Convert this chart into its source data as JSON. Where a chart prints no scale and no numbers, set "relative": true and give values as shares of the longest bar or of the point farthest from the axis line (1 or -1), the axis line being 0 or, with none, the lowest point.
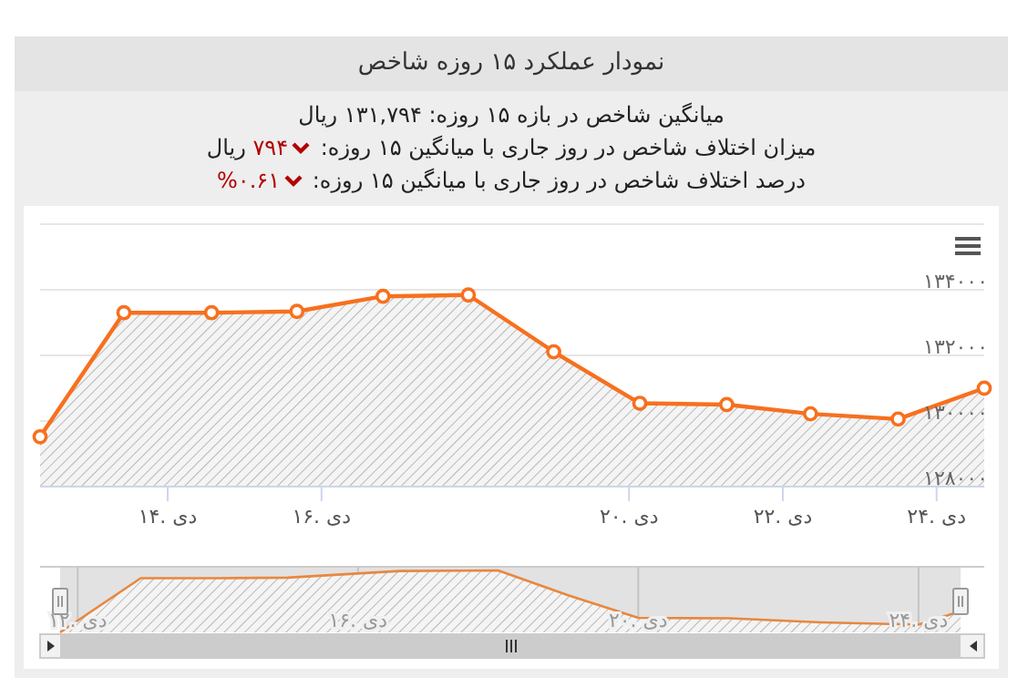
{
  "chart_data": [
    {
      "type": "area",
      "title": "نمودار عملکرد ۱۵ روزه شاخص",
      "annotations": [
        "میانگین شاخص در بازه ۱۵ روزه: ۱۳۱,۷۹۴ ریال",
        "میزان اختلاف شاخص در روز جاری با میانگین ۱۵ روزه: ۷۹۴ ریال",
        "درصد اختلاف شاخص در روز جاری با میانگین ۱۵ روزه: ۰.۶۱%"
      ],
      "x": [
        12.34,
        13.43,
        14.57,
        15.68,
        16.8,
        17.91,
        19.02,
        20.14,
        21.27,
        22.36,
        23.5,
        24.62
      ],
      "series": [
        {
          "color": "#f7701e",
          "values": [
            129520,
            133300,
            133300,
            133340,
            133800,
            133840,
            132110,
            130540,
            130500,
            130220,
            130060,
            131000
          ]
        }
      ],
      "xlim": [
        12.34,
        24.62
      ],
      "xticks": [
        {
          "value": 14,
          "label": "۱۴. دی"
        },
        {
          "value": 16,
          "label": "۱۶. دی"
        },
        {
          "value": 20,
          "label": "۲۰. دی"
        },
        {
          "value": 22,
          "label": "۲۲. دی"
        },
        {
          "value": 24,
          "label": "۲۴. دی"
        }
      ],
      "ylim": [
        128000,
        136000
      ],
      "yticks": [
        {
          "value": 128000,
          "label": "۱۲۸۰۰۰"
        },
        {
          "value": 130000,
          "label": "۱۳۰۰۰۰"
        },
        {
          "value": 132000,
          "label": "۱۳۲۰۰۰"
        },
        {
          "value": 134000,
          "label": "۱۳۴۰۰۰"
        },
        {
          "value": 136000,
          "label": null
        }
      ],
      "grid": "y",
      "marker": "circle"
    },
    {
      "type": "area",
      "relative": true,
      "x": [
        11.75,
        12.9,
        14.0,
        15.0,
        16.6,
        18.0,
        19.0,
        20.0,
        21.3,
        22.6,
        24.0,
        24.6
      ],
      "series": [
        {
          "color": "#e8873f",
          "values": [
            0,
            0.875,
            0.875,
            0.884,
            0.991,
            1,
            0.6,
            0.236,
            0.227,
            0.162,
            0.125,
            0.343
          ]
        }
      ],
      "xlim": [
        11.75,
        24.6
      ],
      "xticks": [
        {
          "value": 12,
          "label": "۱۲. دی"
        },
        {
          "value": 16,
          "label": "۱۶. دی"
        },
        {
          "value": 20,
          "label": "۲۰. دی"
        },
        {
          "value": 24,
          "label": "۲۴. دی"
        }
      ],
      "tick_labels": "x",
      "grid": "x"
    }
  ]
}
